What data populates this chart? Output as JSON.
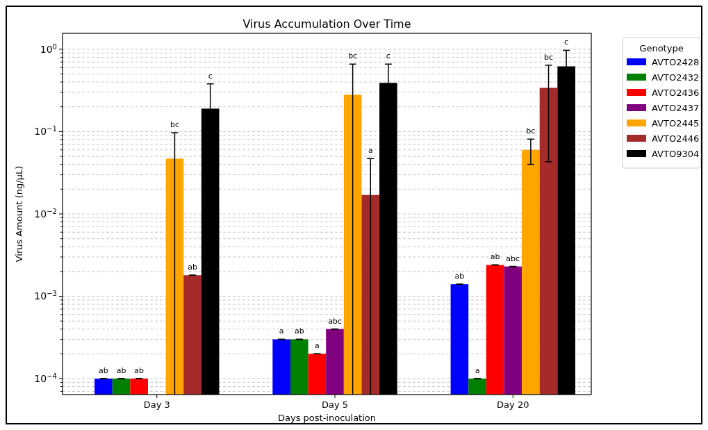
{
  "chart_data": {
    "type": "bar",
    "title": "Virus Accumulation Over Time",
    "xlabel": "Days post-inoculation",
    "ylabel": "Virus Amount (ng/µL)",
    "legend_title": "Genotype",
    "legend": "right",
    "log": true,
    "grid": "y",
    "categories": [
      "Day 3",
      "Day 5",
      "Day 20"
    ],
    "ylim": [
      6.4e-05,
      1.56
    ],
    "yticks": [
      {
        "value": 7e-05,
        "label": null
      },
      {
        "value": 8e-05,
        "label": null
      },
      {
        "value": 9e-05,
        "label": null
      },
      {
        "value": 0.0001,
        "label": "10$^{−4}$"
      },
      {
        "value": 0.0002,
        "label": null
      },
      {
        "value": 0.0003,
        "label": null
      },
      {
        "value": 0.0004,
        "label": null
      },
      {
        "value": 0.0005,
        "label": null
      },
      {
        "value": 0.0006,
        "label": null
      },
      {
        "value": 0.0007,
        "label": null
      },
      {
        "value": 0.0008,
        "label": null
      },
      {
        "value": 0.0009,
        "label": null
      },
      {
        "value": 0.001,
        "label": "10$^{−3}$"
      },
      {
        "value": 0.002,
        "label": null
      },
      {
        "value": 0.003,
        "label": null
      },
      {
        "value": 0.004,
        "label": null
      },
      {
        "value": 0.005,
        "label": null
      },
      {
        "value": 0.006,
        "label": null
      },
      {
        "value": 0.007,
        "label": null
      },
      {
        "value": 0.008,
        "label": null
      },
      {
        "value": 0.009,
        "label": null
      },
      {
        "value": 0.01,
        "label": "10$^{−2}$"
      },
      {
        "value": 0.02,
        "label": null
      },
      {
        "value": 0.03,
        "label": null
      },
      {
        "value": 0.04,
        "label": null
      },
      {
        "value": 0.05,
        "label": null
      },
      {
        "value": 0.06,
        "label": null
      },
      {
        "value": 0.07,
        "label": null
      },
      {
        "value": 0.08,
        "label": null
      },
      {
        "value": 0.09,
        "label": null
      },
      {
        "value": 0.1,
        "label": "10$^{−1}$"
      },
      {
        "value": 0.2,
        "label": null
      },
      {
        "value": 0.3,
        "label": null
      },
      {
        "value": 0.4,
        "label": null
      },
      {
        "value": 0.5,
        "label": null
      },
      {
        "value": 0.6,
        "label": null
      },
      {
        "value": 0.7,
        "label": null
      },
      {
        "value": 0.8,
        "label": null
      },
      {
        "value": 0.9,
        "label": null
      },
      {
        "value": 1,
        "label": "10$^{0}$"
      }
    ],
    "series": [
      {
        "name": "AVTO2428",
        "color": "#0000ff",
        "values": [
          0.0001,
          0.0003,
          0.0014
        ],
        "errors": [
          0,
          0,
          0
        ]
      },
      {
        "name": "AVTO2432",
        "color": "#008000",
        "values": [
          0.0001,
          0.0003,
          0.0001
        ],
        "errors": [
          0,
          0,
          0
        ]
      },
      {
        "name": "AVTO2436",
        "color": "#ff0000",
        "values": [
          0.0001,
          0.0002,
          0.0024
        ],
        "errors": [
          0,
          0,
          0
        ]
      },
      {
        "name": "AVTO2437",
        "color": "#800080",
        "values": [
          null,
          0.0004,
          0.0023
        ],
        "errors": [
          null,
          0,
          0
        ]
      },
      {
        "name": "AVTO2445",
        "color": "#ffa500",
        "values": [
          0.047,
          0.28,
          0.06
        ],
        "errors": [
          [
            6.4e-05,
            0.097
          ],
          [
            6.4e-05,
            0.66
          ],
          [
            0.04,
            0.081
          ]
        ]
      },
      {
        "name": "AVTO2446",
        "color": "#a52a2a",
        "values": [
          0.0018,
          0.017,
          0.34
        ],
        "errors": [
          0,
          [
            6.4e-05,
            0.047
          ],
          [
            0.043,
            0.64
          ]
        ]
      },
      {
        "name": "AVTO9304",
        "color": "#000000",
        "values": [
          0.19,
          0.39,
          0.62
        ],
        "errors": [
          [
            6.4e-05,
            0.38
          ],
          0.27,
          0.35
        ]
      }
    ],
    "annotations": [
      "ab",
      "ab",
      "ab",
      "bc",
      "ab",
      "c",
      "a",
      "ab",
      "a",
      "abc",
      "bc",
      "a",
      "c",
      "ab",
      "a",
      "ab",
      "abc",
      "bc",
      "bc",
      "c"
    ]
  }
}
